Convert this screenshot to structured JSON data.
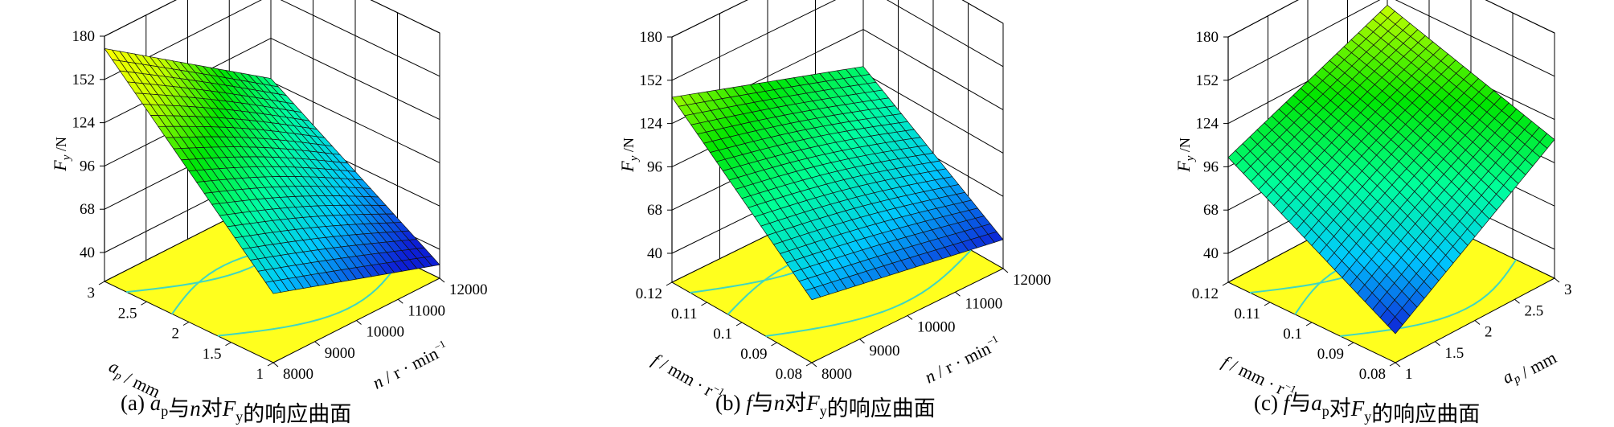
{
  "chart_data": [
    {
      "type": "surface",
      "caption": {
        "tag": "(a)",
        "parts": [
          "a",
          "p",
          "与",
          "n",
          "对",
          "F",
          "y",
          "的响应曲面"
        ]
      },
      "zlabel": {
        "main": "F",
        "sub": "y",
        "unit": " /N"
      },
      "xlabel": {
        "main": "n",
        "unit": " / r · min",
        "sup": "−1"
      },
      "ylabel": {
        "main": "a",
        "sub": "p",
        "unit": " / mm"
      },
      "zticks": [
        "40",
        "68",
        "96",
        "124",
        "152",
        "180"
      ],
      "xticks": [
        "8000",
        "9000",
        "10000",
        "11000",
        "12000"
      ],
      "yticks": [
        "1",
        "1.5",
        "2",
        "2.5",
        "3"
      ],
      "zlim": [
        40,
        180
      ],
      "xlim": [
        8000,
        12000
      ],
      "ylim": [
        1,
        3
      ],
      "corners": {
        "z_xmin_ymin": 66,
        "z_xmax_ymin": 30,
        "z_xmin_ymax": 172,
        "z_xmax_ymax": 98
      },
      "colormap": [
        "#0d1fd6",
        "#00c8ff",
        "#00ff9a",
        "#00e600",
        "#c8ff00",
        "#ffff00"
      ],
      "contour_color": "#3fd6c2"
    },
    {
      "type": "surface",
      "caption": {
        "tag": "(b)",
        "parts": [
          "f",
          "与",
          "n",
          "对",
          "F",
          "y",
          "的响应曲面"
        ]
      },
      "zlabel": {
        "main": "F",
        "sub": "y",
        "unit": " /N"
      },
      "xlabel": {
        "main": "n",
        "unit": " / r · min",
        "sup": "−1"
      },
      "ylabel": {
        "main": "f",
        "sub": "",
        "unit": " / mm · r",
        "sup": "−1"
      },
      "zticks": [
        "40",
        "68",
        "96",
        "124",
        "152",
        "180"
      ],
      "xticks": [
        "8000",
        "9000",
        "10000",
        "11000",
        "12000"
      ],
      "yticks": [
        "0.08",
        "0.09",
        "0.1",
        "0.11",
        "0.12"
      ],
      "zlim": [
        40,
        180
      ],
      "xlim": [
        8000,
        12000
      ],
      "ylim": [
        0.08,
        0.12
      ],
      "corners": {
        "z_xmin_ymin": 62,
        "z_xmax_ymin": 40,
        "z_xmin_ymax": 141,
        "z_xmax_ymax": 100
      },
      "colormap": [
        "#0d1fd6",
        "#00c8ff",
        "#00ff9a",
        "#00e600",
        "#c8ff00",
        "#ffff00"
      ],
      "contour_color": "#3fd6c2"
    },
    {
      "type": "surface",
      "caption": {
        "tag": "(c)",
        "parts": [
          "f",
          "与",
          "a",
          "p",
          "对",
          "F",
          "y",
          "的响应曲面"
        ]
      },
      "zlabel": {
        "main": "F",
        "sub": "y",
        "unit": " /N"
      },
      "xlabel": {
        "main": "a",
        "sub": "p",
        "unit": " / mm"
      },
      "ylabel": {
        "main": "f",
        "sub": "",
        "unit": " / mm · r",
        "sup": "−1"
      },
      "zticks": [
        "40",
        "68",
        "96",
        "124",
        "152",
        "180"
      ],
      "xticks": [
        "1",
        "1.5",
        "2",
        "2.5",
        "3"
      ],
      "yticks": [
        "0.08",
        "0.09",
        "0.1",
        "0.11",
        "0.12"
      ],
      "zlim": [
        40,
        180
      ],
      "xlim": [
        1,
        3
      ],
      "ylim": [
        0.08,
        0.12
      ],
      "corners": {
        "z_xmin_ymin": 40,
        "z_xmax_ymin": 111,
        "z_xmin_ymax": 102,
        "z_xmax_ymax": 146
      },
      "colormap": [
        "#0d1fd6",
        "#00c8ff",
        "#00ff9a",
        "#00e600",
        "#c8ff00",
        "#ffff00"
      ],
      "contour_color": "#3fd6c2"
    }
  ]
}
